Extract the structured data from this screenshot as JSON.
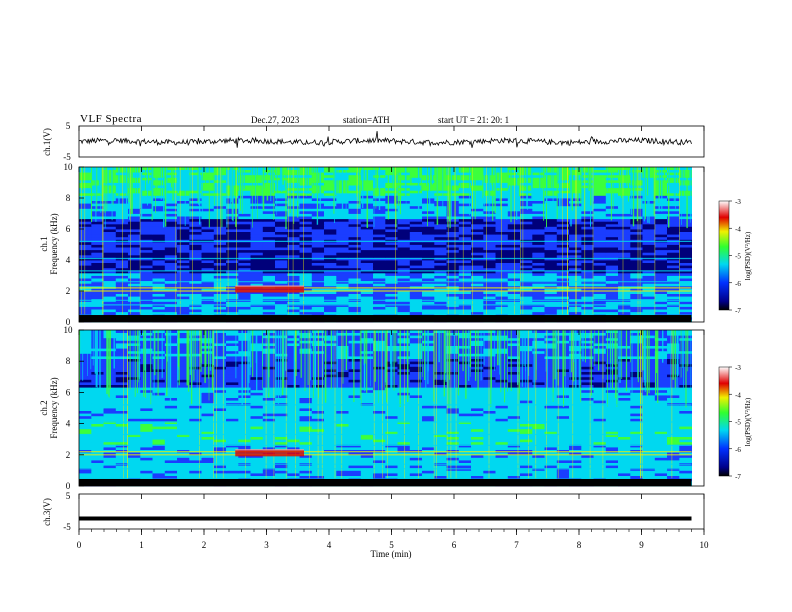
{
  "header": {
    "title": "VLF  Spectra",
    "date": "Dec.27, 2023",
    "station": "station=ATH",
    "start": "start  UT  =    21: 20: 1"
  },
  "colors": {
    "noise_dark": "#00007a",
    "noise_blue": "#1a3dff",
    "cyan": "#00d8f0",
    "green": "#3cff3c",
    "yellow": "#f0f000",
    "red": "#e00000",
    "pink": "#f0b0b0",
    "trace": "#000000"
  },
  "chart_data": [
    {
      "type": "line",
      "panel": "ch1_waveform",
      "ylabel": "ch.1(V)",
      "ylim": [
        -5,
        5
      ],
      "yticks": [
        "5",
        "-5"
      ],
      "xlim": [
        0,
        10
      ],
      "series_desc": "noisy trace around 0 V",
      "x_end": 9.8
    },
    {
      "type": "heatmap",
      "panel": "ch1_spectrogram",
      "ylabel": "ch.1\nFrequency (kHz)",
      "ylim": [
        0,
        10
      ],
      "yticks": [
        "0",
        "2",
        "4",
        "6",
        "8",
        "10"
      ],
      "xlim": [
        0,
        10
      ],
      "colorbar": {
        "label": "log(PSD)(V²/Hz)",
        "range": [
          -7,
          -3
        ],
        "ticks": [
          "-3",
          "-4",
          "-5",
          "-6",
          "-7"
        ]
      },
      "bands_khz": [
        2.0,
        2.2
      ],
      "strong_segment_min": [
        2.5,
        3.6
      ]
    },
    {
      "type": "heatmap",
      "panel": "ch2_spectrogram",
      "ylabel": "ch.2\nFrequency (kHz)",
      "ylim": [
        0,
        10
      ],
      "yticks": [
        "0",
        "2",
        "4",
        "6",
        "8",
        "10"
      ],
      "xlim": [
        0,
        10
      ],
      "colorbar": {
        "label": "log(PSD)(V²/Hz)",
        "range": [
          -7,
          -3
        ],
        "ticks": [
          "-3",
          "-4",
          "-5",
          "-6",
          "-7"
        ]
      },
      "bands_khz": [
        2.0,
        2.2
      ],
      "strong_segment_min": [
        2.5,
        3.6
      ]
    },
    {
      "type": "line",
      "panel": "ch3_waveform",
      "ylabel": "ch.3(V)",
      "ylim": [
        -5,
        5
      ],
      "yticks": [
        "5",
        "-5"
      ],
      "xlim": [
        0,
        10
      ],
      "series_desc": "flat line at about -2 V",
      "y_value": -2,
      "x_end": 9.8
    }
  ],
  "xaxis": {
    "label": "Time  (min)",
    "ticks": [
      "0",
      "1",
      "2",
      "3",
      "4",
      "5",
      "6",
      "7",
      "8",
      "9",
      "10"
    ]
  }
}
